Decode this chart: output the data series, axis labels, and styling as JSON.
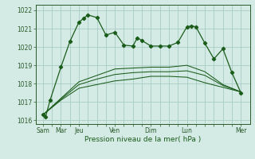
{
  "title": "",
  "xlabel": "Pression niveau de la mer( hPa )",
  "ylabel": "",
  "bg_color": "#d4eae5",
  "grid_color": "#aaccc5",
  "line_color": "#1a5c1a",
  "ylim": [
    1015.8,
    1022.3
  ],
  "yticks": [
    1016,
    1017,
    1018,
    1019,
    1020,
    1021,
    1022
  ],
  "xtick_major_labels": [
    "Sam",
    "Mar",
    "Jeu",
    "Ven",
    "Dim",
    "Lun",
    "Mer"
  ],
  "xtick_major_positions": [
    0,
    2,
    4,
    8,
    12,
    16,
    22
  ],
  "series1_x": [
    0,
    0.3,
    0.8,
    2,
    3,
    4,
    4.5,
    5,
    6,
    7,
    8,
    9,
    10,
    10.5,
    11,
    12,
    13,
    14,
    15,
    16,
    16.5,
    17,
    18,
    19,
    20,
    21,
    22
  ],
  "series1_y": [
    1016.3,
    1016.2,
    1017.1,
    1018.9,
    1020.3,
    1021.35,
    1021.55,
    1021.75,
    1021.6,
    1020.65,
    1020.8,
    1020.1,
    1020.05,
    1020.5,
    1020.35,
    1020.05,
    1020.05,
    1020.05,
    1020.25,
    1021.1,
    1021.15,
    1021.1,
    1020.2,
    1019.35,
    1019.9,
    1018.6,
    1017.5
  ],
  "series2_x": [
    0,
    2,
    4,
    6,
    8,
    10,
    12,
    14,
    16,
    18,
    20,
    22
  ],
  "series2_y": [
    1016.3,
    1017.1,
    1017.75,
    1017.95,
    1018.15,
    1018.25,
    1018.4,
    1018.4,
    1018.35,
    1018.05,
    1017.8,
    1017.55
  ],
  "series3_x": [
    0,
    2,
    4,
    6,
    8,
    10,
    12,
    14,
    16,
    18,
    20,
    22
  ],
  "series3_y": [
    1016.3,
    1017.15,
    1017.95,
    1018.25,
    1018.5,
    1018.6,
    1018.65,
    1018.65,
    1018.7,
    1018.45,
    1017.9,
    1017.55
  ],
  "series4_x": [
    0,
    2,
    4,
    6,
    8,
    10,
    12,
    14,
    16,
    18,
    20,
    22
  ],
  "series4_y": [
    1016.3,
    1017.2,
    1018.1,
    1018.45,
    1018.8,
    1018.85,
    1018.9,
    1018.9,
    1019.0,
    1018.65,
    1017.95,
    1017.55
  ]
}
